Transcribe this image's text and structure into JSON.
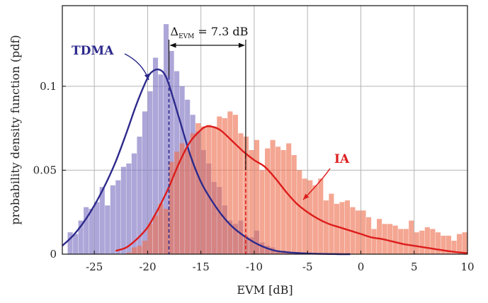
{
  "chart_data": {
    "type": "histogram",
    "xlabel": "EVM [dB]",
    "ylabel": "probability density function (pdf)",
    "xlim": [
      -28,
      10
    ],
    "ylim": [
      0,
      0.148
    ],
    "xticks": [
      -25,
      -20,
      -15,
      -10,
      -5,
      0,
      5,
      10
    ],
    "yticks": [
      0,
      0.05,
      0.1
    ],
    "xtick_labels": [
      "-25",
      "-20",
      "-15",
      "-10",
      "-5",
      "0",
      "5",
      "10"
    ],
    "ytick_labels": [
      "0",
      "0.05",
      "0.1"
    ],
    "grid": true,
    "bin_width": 0.5,
    "series": [
      {
        "name": "TDMA",
        "color": "#7b6fc0",
        "curve_color": "#2d2a8c",
        "mode_x": -18,
        "bins_start": -27.5,
        "hist": [
          0.013,
          0.012,
          0.02,
          0.028,
          0.027,
          0.031,
          0.04,
          0.029,
          0.041,
          0.044,
          0.052,
          0.054,
          0.06,
          0.07,
          0.085,
          0.097,
          0.117,
          0.107,
          0.137,
          0.121,
          0.109,
          0.1,
          0.092,
          0.083,
          0.073,
          0.062,
          0.054,
          0.043,
          0.04,
          0.029,
          0.02,
          0.018,
          0.02,
          0.011,
          0.01,
          0.014,
          0.007,
          0.005,
          0.004,
          0.002,
          0.002,
          0.001
        ],
        "curve_x": [
          -28,
          -27,
          -26,
          -25,
          -24,
          -23,
          -22,
          -21,
          -20,
          -19.5,
          -19,
          -18.5,
          -18,
          -17,
          -16,
          -15,
          -14,
          -13,
          -12,
          -11,
          -10,
          -9,
          -8,
          -7,
          -6,
          -5,
          -4,
          -3,
          -2,
          -1
        ],
        "curve_y": [
          0.005,
          0.011,
          0.019,
          0.029,
          0.041,
          0.055,
          0.072,
          0.09,
          0.105,
          0.109,
          0.11,
          0.108,
          0.101,
          0.08,
          0.059,
          0.043,
          0.032,
          0.023,
          0.016,
          0.011,
          0.007,
          0.004,
          0.002,
          0.0012,
          0.0007,
          0.0004,
          0.0002,
          0.0001,
          0.0,
          0.0
        ]
      },
      {
        "name": "IA",
        "color": "#ee6f4f",
        "curve_color": "#dd1c1c",
        "mode_x": -10.8,
        "bins_start": -22,
        "hist": [
          0.001,
          0.004,
          0.005,
          0.008,
          0.018,
          0.023,
          0.03,
          0.027,
          0.055,
          0.061,
          0.066,
          0.062,
          0.072,
          0.078,
          0.076,
          0.077,
          0.076,
          0.082,
          0.081,
          0.085,
          0.083,
          0.072,
          0.07,
          0.062,
          0.068,
          0.05,
          0.063,
          0.068,
          0.064,
          0.062,
          0.066,
          0.059,
          0.05,
          0.045,
          0.044,
          0.041,
          0.045,
          0.032,
          0.036,
          0.03,
          0.031,
          0.032,
          0.028,
          0.026,
          0.026,
          0.022,
          0.015,
          0.021,
          0.018,
          0.018,
          0.017,
          0.015,
          0.015,
          0.02,
          0.013,
          0.014,
          0.016,
          0.015,
          0.013,
          0.011,
          0.011,
          0.008,
          0.012,
          0.013,
          0.005,
          0.007,
          0.011,
          0.006,
          0.004,
          0.007,
          0.005,
          0.003,
          0.004,
          0.003,
          0.003,
          0.002,
          0.002,
          0.002,
          0.002,
          0.001,
          0.001,
          0.001,
          0.001,
          0.001,
          0.001,
          0.001,
          0.002
        ],
        "curve_x": [
          -23,
          -22,
          -21,
          -20,
          -19,
          -18,
          -17,
          -16,
          -15,
          -14.5,
          -14,
          -13.5,
          -13,
          -12,
          -11,
          -10,
          -9,
          -8,
          -7,
          -6,
          -5,
          -4,
          -3,
          -2,
          -1,
          0,
          1,
          2,
          3,
          4,
          5,
          6,
          7,
          8,
          9,
          10
        ],
        "curve_y": [
          0.002,
          0.004,
          0.009,
          0.016,
          0.027,
          0.04,
          0.055,
          0.067,
          0.074,
          0.076,
          0.076,
          0.075,
          0.073,
          0.067,
          0.061,
          0.056,
          0.052,
          0.045,
          0.037,
          0.03,
          0.025,
          0.021,
          0.018,
          0.016,
          0.014,
          0.012,
          0.01,
          0.009,
          0.0075,
          0.006,
          0.005,
          0.004,
          0.003,
          0.002,
          0.0012,
          0.0006
        ]
      }
    ],
    "annotations": {
      "delta_label": "Δ",
      "delta_sub": "EVM",
      "delta_value": "= 7.3 dB",
      "delta_from_x": -18,
      "delta_to_x": -10.8
    }
  }
}
